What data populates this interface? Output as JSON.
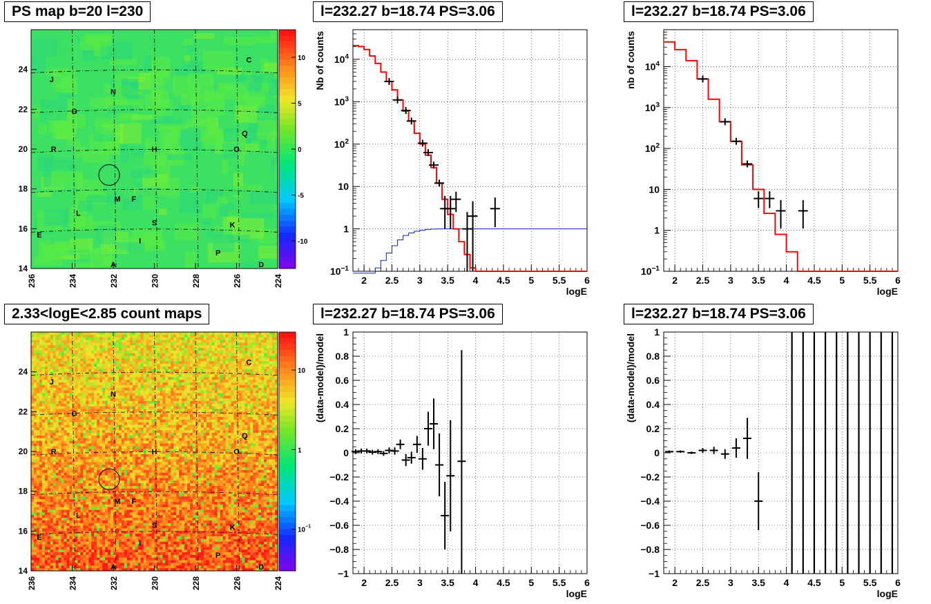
{
  "chart_data": [
    {
      "id": "ps-map",
      "type": "heatmap",
      "title": "PS map b=20 l=230",
      "xlim": [
        236,
        224
      ],
      "ylim": [
        14,
        26
      ],
      "xticks": [
        "236",
        "234",
        "232",
        "230",
        "228",
        "226",
        "224"
      ],
      "yticks": [
        "14",
        "16",
        "18",
        "20",
        "22",
        "24"
      ],
      "colorscale": {
        "scale": "linear",
        "range": [
          -13,
          13
        ],
        "ticks": [
          "10",
          "5",
          "0",
          "-5",
          "-10"
        ]
      },
      "circle": {
        "l": 232.2,
        "b": 18.7
      },
      "sources": [
        {
          "label": "C",
          "l": 225.4,
          "b": 24.5
        },
        {
          "label": "J",
          "l": 235.0,
          "b": 23.5
        },
        {
          "label": "N",
          "l": 232.0,
          "b": 22.9
        },
        {
          "label": "G",
          "l": 233.9,
          "b": 21.9
        },
        {
          "label": "Q",
          "l": 225.6,
          "b": 20.8
        },
        {
          "label": "R",
          "l": 234.9,
          "b": 20.0
        },
        {
          "label": "H",
          "l": 230.0,
          "b": 20.0
        },
        {
          "label": "O",
          "l": 226.0,
          "b": 20.0
        },
        {
          "label": "M",
          "l": 231.8,
          "b": 17.5
        },
        {
          "label": "F",
          "l": 231.0,
          "b": 17.5
        },
        {
          "label": "L",
          "l": 233.7,
          "b": 16.8
        },
        {
          "label": "S",
          "l": 230.0,
          "b": 16.3
        },
        {
          "label": "K",
          "l": 226.2,
          "b": 16.2
        },
        {
          "label": "E",
          "l": 235.6,
          "b": 15.7
        },
        {
          "label": "I",
          "l": 230.7,
          "b": 15.4
        },
        {
          "label": "P",
          "l": 226.9,
          "b": 14.8
        },
        {
          "label": "A",
          "l": 232.0,
          "b": 14.2
        },
        {
          "label": "D",
          "l": 224.8,
          "b": 14.2
        }
      ]
    },
    {
      "id": "spectrum-1",
      "type": "line",
      "title": "l=232.27 b=18.74 PS=3.06",
      "xlabel": "logE",
      "ylabel": "Nb of counts",
      "xlim": [
        1.8,
        6
      ],
      "ylim": [
        0.1,
        50000
      ],
      "yscale": "log",
      "grid": true,
      "xticks": [
        "2",
        "2.5",
        "3",
        "3.5",
        "4",
        "4.5",
        "5",
        "5.5",
        "6"
      ],
      "yticks": [
        {
          "v": 0.1,
          "t": "10",
          "sup": "−1"
        },
        {
          "v": 1,
          "t": "1"
        },
        {
          "v": 10,
          "t": "10"
        },
        {
          "v": 100,
          "t": "10",
          "sup": "2"
        },
        {
          "v": 1000,
          "t": "10",
          "sup": "3"
        },
        {
          "v": 10000,
          "t": "10",
          "sup": "4"
        }
      ],
      "model": {
        "edges": [
          1.8,
          1.9,
          2.0,
          2.1,
          2.2,
          2.3,
          2.4,
          2.5,
          2.6,
          2.7,
          2.8,
          2.9,
          3.0,
          3.1,
          3.2,
          3.3,
          3.4,
          3.5,
          3.6,
          3.7,
          3.8,
          3.9,
          4.0,
          6.0
        ],
        "values": [
          21000,
          20000,
          17000,
          12000,
          8000,
          5000,
          3000,
          1900,
          1100,
          600,
          350,
          180,
          100,
          55,
          28,
          12,
          5,
          2.2,
          1.0,
          0.5,
          0.25,
          0.12,
          0.1
        ]
      },
      "background": {
        "edges": [
          1.8,
          2.2,
          2.3,
          2.4,
          2.5,
          2.6,
          2.7,
          2.8,
          2.9,
          3.0,
          3.1,
          3.2,
          3.3,
          3.4,
          3.5,
          6.0
        ],
        "values": [
          0.09,
          0.12,
          0.18,
          0.27,
          0.4,
          0.55,
          0.7,
          0.8,
          0.88,
          0.93,
          0.97,
          0.99,
          1.0,
          1.0,
          1.0
        ]
      },
      "points": [
        {
          "x": 2.45,
          "y": 3000
        },
        {
          "x": 2.6,
          "y": 1100
        },
        {
          "x": 2.75,
          "y": 620
        },
        {
          "x": 2.85,
          "y": 350
        },
        {
          "x": 3.05,
          "y": 105
        },
        {
          "x": 3.15,
          "y": 63
        },
        {
          "x": 3.25,
          "y": 32
        },
        {
          "x": 3.35,
          "y": 12
        },
        {
          "x": 3.45,
          "y": 3,
          "lo": 1,
          "hi": 6
        },
        {
          "x": 3.55,
          "y": 3,
          "lo": 1,
          "hi": 6
        },
        {
          "x": 3.65,
          "y": 5,
          "lo": 2.5,
          "hi": 7.5
        },
        {
          "x": 3.85,
          "y": 1,
          "lo": 0.1,
          "hi": 2.5
        },
        {
          "x": 3.95,
          "y": 2,
          "lo": 0.1,
          "hi": 4.5
        },
        {
          "x": 4.35,
          "y": 3,
          "lo": 1.1,
          "hi": 5.5
        }
      ]
    },
    {
      "id": "spectrum-2",
      "type": "line",
      "title": "l=232.27 b=18.74 PS=3.06",
      "xlabel": "logE",
      "ylabel": "nb of counts",
      "xlim": [
        1.8,
        6
      ],
      "ylim": [
        0.1,
        80000
      ],
      "yscale": "log",
      "grid": true,
      "xticks": [
        "2",
        "2.5",
        "3",
        "3.5",
        "4",
        "4.5",
        "5",
        "5.5",
        "6"
      ],
      "yticks": [
        {
          "v": 0.1,
          "t": "10",
          "sup": "−1"
        },
        {
          "v": 1,
          "t": "1"
        },
        {
          "v": 10,
          "t": "10"
        },
        {
          "v": 100,
          "t": "10",
          "sup": "2"
        },
        {
          "v": 1000,
          "t": "10",
          "sup": "3"
        },
        {
          "v": 10000,
          "t": "10",
          "sup": "4"
        }
      ],
      "model": {
        "edges": [
          1.8,
          2.0,
          2.2,
          2.4,
          2.6,
          2.8,
          3.0,
          3.2,
          3.4,
          3.6,
          3.8,
          4.0,
          4.2,
          6.0
        ],
        "values": [
          40000,
          26000,
          14000,
          5000,
          1600,
          450,
          150,
          40,
          10,
          2.6,
          0.8,
          0.3,
          0.1
        ]
      },
      "points": [
        {
          "x": 2.5,
          "y": 5000
        },
        {
          "x": 2.9,
          "y": 450
        },
        {
          "x": 3.1,
          "y": 150
        },
        {
          "x": 3.3,
          "y": 42
        },
        {
          "x": 3.5,
          "y": 6,
          "lo": 3.5,
          "hi": 9
        },
        {
          "x": 3.7,
          "y": 6,
          "lo": 3.5,
          "hi": 9
        },
        {
          "x": 3.9,
          "y": 3,
          "lo": 1.1,
          "hi": 5.5
        },
        {
          "x": 4.3,
          "y": 3,
          "lo": 1.1,
          "hi": 5.5
        }
      ]
    },
    {
      "id": "count-map",
      "type": "heatmap",
      "title": "2.33<logE<2.85 count maps",
      "xlim": [
        236,
        224
      ],
      "ylim": [
        14,
        26
      ],
      "xticks": [
        "236",
        "234",
        "232",
        "230",
        "228",
        "226",
        "224"
      ],
      "yticks": [
        "14",
        "16",
        "18",
        "20",
        "22",
        "24"
      ],
      "colorscale": {
        "scale": "log",
        "range": [
          0.03,
          30
        ],
        "ticks": [
          {
            "t": "10",
            "v": 10
          },
          {
            "t": "1",
            "v": 1
          },
          {
            "t": "10",
            "sup": "−1",
            "v": 0.1
          }
        ]
      },
      "circle": {
        "l": 232.2,
        "b": 18.6
      },
      "sources": [
        {
          "label": "C",
          "l": 225.4,
          "b": 24.5
        },
        {
          "label": "J",
          "l": 235.0,
          "b": 23.5
        },
        {
          "label": "N",
          "l": 232.0,
          "b": 22.9
        },
        {
          "label": "G",
          "l": 233.9,
          "b": 21.9
        },
        {
          "label": "Q",
          "l": 225.6,
          "b": 20.8
        },
        {
          "label": "R",
          "l": 234.9,
          "b": 20.0
        },
        {
          "label": "H",
          "l": 230.0,
          "b": 20.0
        },
        {
          "label": "O",
          "l": 226.0,
          "b": 20.0
        },
        {
          "label": "M",
          "l": 231.8,
          "b": 17.5
        },
        {
          "label": "F",
          "l": 231.0,
          "b": 17.5
        },
        {
          "label": "L",
          "l": 233.7,
          "b": 16.8
        },
        {
          "label": "S",
          "l": 230.0,
          "b": 16.3
        },
        {
          "label": "K",
          "l": 226.2,
          "b": 16.2
        },
        {
          "label": "E",
          "l": 235.6,
          "b": 15.7
        },
        {
          "label": "I",
          "l": 230.7,
          "b": 15.4
        },
        {
          "label": "P",
          "l": 226.9,
          "b": 14.8
        },
        {
          "label": "A",
          "l": 232.0,
          "b": 14.2
        },
        {
          "label": "D",
          "l": 224.8,
          "b": 14.2
        }
      ]
    },
    {
      "id": "residual-1",
      "type": "scatter",
      "title": "l=232.27 b=18.74 PS=3.06",
      "xlabel": "logE",
      "ylabel": "(data-model)/model",
      "xlim": [
        1.8,
        6
      ],
      "ylim": [
        -1,
        1
      ],
      "grid": true,
      "xticks": [
        "2",
        "2.5",
        "3",
        "3.5",
        "4",
        "4.5",
        "5",
        "5.5",
        "6"
      ],
      "yticks": [
        "1",
        "0.8",
        "0.6",
        "0.4",
        "0.2",
        "0",
        "−0.2",
        "−0.4",
        "−0.6",
        "−0.8",
        "−1"
      ],
      "points": [
        {
          "x": 1.85,
          "y": 0.01,
          "e": 0.02
        },
        {
          "x": 1.95,
          "y": 0.015,
          "e": 0.02
        },
        {
          "x": 2.05,
          "y": 0.015,
          "e": 0.02
        },
        {
          "x": 2.15,
          "y": 0.005,
          "e": 0.02
        },
        {
          "x": 2.25,
          "y": 0.01,
          "e": 0.02
        },
        {
          "x": 2.35,
          "y": -0.005,
          "e": 0.02
        },
        {
          "x": 2.45,
          "y": 0.02,
          "e": 0.025
        },
        {
          "x": 2.55,
          "y": 0.015,
          "e": 0.03
        },
        {
          "x": 2.65,
          "y": 0.07,
          "e": 0.04
        },
        {
          "x": 2.75,
          "y": -0.06,
          "e": 0.05
        },
        {
          "x": 2.85,
          "y": -0.04,
          "e": 0.05
        },
        {
          "x": 2.95,
          "y": 0.07,
          "e": 0.07
        },
        {
          "x": 3.05,
          "y": -0.05,
          "e": 0.09
        },
        {
          "x": 3.15,
          "y": 0.2,
          "e": 0.14
        },
        {
          "x": 3.25,
          "y": 0.24,
          "e": 0.21
        },
        {
          "x": 3.35,
          "y": -0.1,
          "e": 0.26
        },
        {
          "x": 3.45,
          "y": -0.52,
          "e": 0.28
        },
        {
          "x": 3.55,
          "y": -0.19,
          "e": 0.46
        },
        {
          "x": 3.75,
          "y": -0.07,
          "lo": -1,
          "hi": 0.85
        }
      ]
    },
    {
      "id": "residual-2",
      "type": "scatter",
      "title": "l=232.27 b=18.74 PS=3.06",
      "xlabel": "logE",
      "ylabel": "(data-model)/model",
      "xlim": [
        1.8,
        6
      ],
      "ylim": [
        -1,
        1
      ],
      "grid": true,
      "xticks": [
        "2",
        "2.5",
        "3",
        "3.5",
        "4",
        "4.5",
        "5",
        "5.5",
        "6"
      ],
      "yticks": [
        "1",
        "0.8",
        "0.6",
        "0.4",
        "0.2",
        "0",
        "−0.2",
        "−0.4",
        "−0.6",
        "−0.8",
        "−1"
      ],
      "points": [
        {
          "x": 1.9,
          "y": 0.01,
          "e": 0.01
        },
        {
          "x": 2.1,
          "y": 0.01,
          "e": 0.01
        },
        {
          "x": 2.3,
          "y": 0.0,
          "e": 0.01
        },
        {
          "x": 2.5,
          "y": 0.02,
          "e": 0.02
        },
        {
          "x": 2.7,
          "y": 0.02,
          "e": 0.03
        },
        {
          "x": 2.9,
          "y": -0.01,
          "e": 0.04
        },
        {
          "x": 3.1,
          "y": 0.04,
          "e": 0.08
        },
        {
          "x": 3.3,
          "y": 0.12,
          "e": 0.17
        },
        {
          "x": 3.5,
          "y": -0.4,
          "e": 0.24
        }
      ],
      "full_bars": [
        4.1,
        4.3,
        4.5,
        4.7,
        4.9,
        5.1,
        5.3,
        5.5,
        5.7,
        5.9
      ]
    }
  ]
}
